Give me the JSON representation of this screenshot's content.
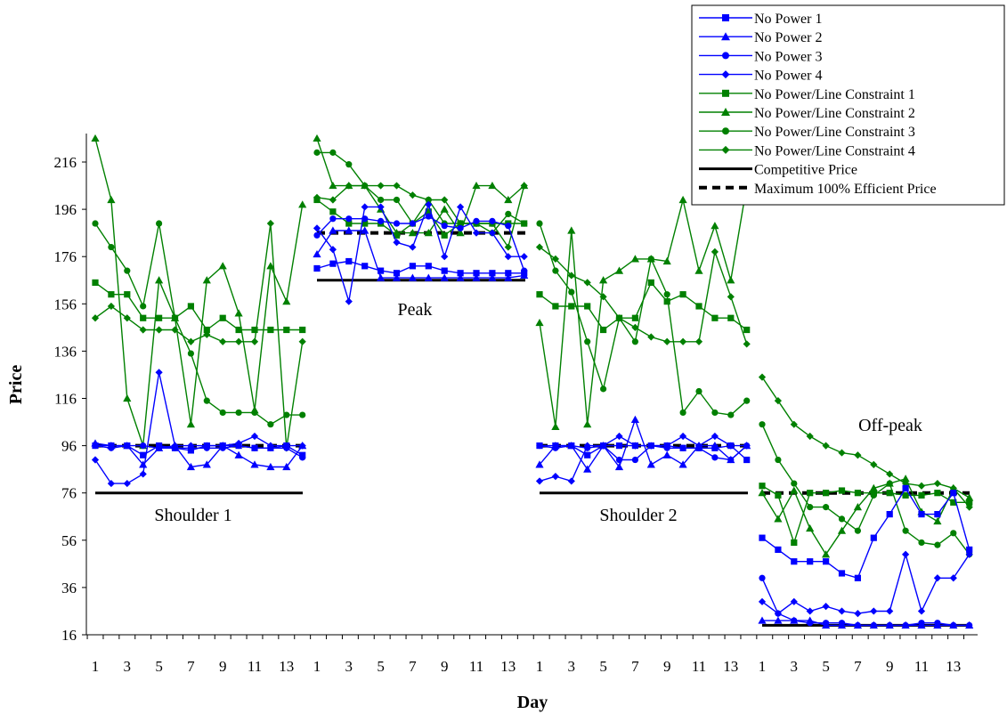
{
  "chart_data": {
    "type": "line",
    "xlabel": "Day",
    "ylabel": "Price",
    "ylim": [
      16,
      231
    ],
    "y_ticks": [
      16,
      36,
      56,
      76,
      96,
      116,
      136,
      156,
      176,
      196,
      216
    ],
    "x_tick_labels": [
      "1",
      "3",
      "5",
      "7",
      "9",
      "11",
      "13"
    ],
    "days": [
      1,
      2,
      3,
      4,
      5,
      6,
      7,
      8,
      9,
      10,
      11,
      12,
      13,
      14
    ],
    "grid": false,
    "legend_position": "top-right",
    "colors": {
      "no_power": "#0000ff",
      "no_power_line": "#008000",
      "reference": "#000000"
    },
    "legend": [
      {
        "label": "No Power 1",
        "marker": "square",
        "color": "#0000ff",
        "style": "solid"
      },
      {
        "label": "No Power 2",
        "marker": "triangle",
        "color": "#0000ff",
        "style": "solid"
      },
      {
        "label": "No Power 3",
        "marker": "circle",
        "color": "#0000ff",
        "style": "solid"
      },
      {
        "label": "No Power 4",
        "marker": "diamond",
        "color": "#0000ff",
        "style": "solid"
      },
      {
        "label": "No Power/Line Constraint 1",
        "marker": "square",
        "color": "#008000",
        "style": "solid"
      },
      {
        "label": "No Power/Line Constraint 2",
        "marker": "triangle",
        "color": "#008000",
        "style": "solid"
      },
      {
        "label": "No Power/Line Constraint 3",
        "marker": "circle",
        "color": "#008000",
        "style": "solid"
      },
      {
        "label": "No Power/Line Constraint 4",
        "marker": "diamond",
        "color": "#008000",
        "style": "solid"
      },
      {
        "label": "Competitive Price",
        "marker": "none",
        "color": "#000000",
        "style": "solid"
      },
      {
        "label": "Maximum 100% Efficient Price",
        "marker": "none",
        "color": "#000000",
        "style": "dashed"
      }
    ],
    "segments": [
      {
        "label": "Shoulder 1",
        "competitive_price": 76,
        "max_efficient_price": 96,
        "series": [
          {
            "name": "No Power 1",
            "values": [
              96,
              96,
              96,
              92,
              96,
              95,
              94,
              96,
              96,
              96,
              95,
              95,
              96,
              92
            ]
          },
          {
            "name": "No Power 2",
            "values": [
              97,
              96,
              96,
              88,
              95,
              96,
              87,
              88,
              96,
              92,
              88,
              87,
              87,
              96
            ]
          },
          {
            "name": "No Power 3",
            "values": [
              96,
              95,
              96,
              96,
              95,
              95,
              95,
              95,
              95,
              96,
              95,
              95,
              95,
              91
            ]
          },
          {
            "name": "No Power 4",
            "values": [
              90,
              80,
              80,
              84,
              127,
              96,
              96,
              96,
              96,
              97,
              100,
              96,
              96,
              96
            ]
          },
          {
            "name": "No Power/Line Constraint 1",
            "values": [
              165,
              160,
              160,
              150,
              150,
              150,
              155,
              145,
              150,
              145,
              145,
              145,
              145,
              145
            ]
          },
          {
            "name": "No Power/Line Constraint 2",
            "values": [
              226,
              200,
              116,
              96,
              166,
              150,
              105,
              166,
              172,
              152,
              111,
              172,
              157,
              198
            ]
          },
          {
            "name": "No Power/Line Constraint 3",
            "values": [
              190,
              180,
              170,
              155,
              190,
              150,
              135,
              115,
              110,
              110,
              110,
              105,
              109,
              109
            ]
          },
          {
            "name": "No Power/Line Constraint 4",
            "values": [
              150,
              155,
              150,
              145,
              145,
              145,
              140,
              143,
              140,
              140,
              140,
              190,
              95,
              140
            ]
          }
        ]
      },
      {
        "label": "Peak",
        "competitive_price": 166,
        "max_efficient_price": 186,
        "series": [
          {
            "name": "No Power 1",
            "values": [
              171,
              173,
              174,
              172,
              170,
              169,
              172,
              172,
              170,
              169,
              169,
              169,
              169,
              169
            ]
          },
          {
            "name": "No Power 2",
            "values": [
              177,
              187,
              187,
              187,
              167,
              167,
              167,
              167,
              167,
              167,
              167,
              167,
              167,
              168
            ]
          },
          {
            "name": "No Power 3",
            "values": [
              185,
              192,
              192,
              192,
              191,
              190,
              190,
              193,
              189,
              188,
              191,
              191,
              189,
              170
            ]
          },
          {
            "name": "No Power 4",
            "values": [
              188,
              179,
              157,
              197,
              197,
              182,
              180,
              198,
              176,
              197,
              186,
              186,
              176,
              176
            ]
          },
          {
            "name": "No Power/Line Constraint 1",
            "values": [
              200,
              195,
              190,
              190,
              190,
              185,
              190,
              195,
              185,
              190,
              190,
              190,
              190,
              190
            ]
          },
          {
            "name": "No Power/Line Constraint 2",
            "values": [
              226,
              206,
              206,
              206,
              196,
              186,
              186,
              186,
              196,
              186,
              206,
              206,
              200,
              206
            ]
          },
          {
            "name": "No Power/Line Constraint 3",
            "values": [
              220,
              220,
              215,
              206,
              200,
              200,
              190,
              200,
              190,
              190,
              190,
              186,
              194,
              190
            ]
          },
          {
            "name": "No Power/Line Constraint 4",
            "values": [
              201,
              200,
              206,
              206,
              206,
              206,
              202,
              200,
              200,
              190,
              190,
              190,
              180,
              206
            ]
          }
        ]
      },
      {
        "label": "Shoulder 2",
        "competitive_price": 76,
        "max_efficient_price": 96,
        "series": [
          {
            "name": "No Power 1",
            "values": [
              96,
              96,
              96,
              92,
              96,
              96,
              96,
              96,
              96,
              95,
              95,
              95,
              96,
              90
            ]
          },
          {
            "name": "No Power 2",
            "values": [
              88,
              96,
              96,
              86,
              96,
              87,
              107,
              88,
              92,
              88,
              96,
              96,
              90,
              96
            ]
          },
          {
            "name": "No Power 3",
            "values": [
              96,
              95,
              96,
              95,
              96,
              90,
              90,
              96,
              95,
              95,
              95,
              91,
              90,
              96
            ]
          },
          {
            "name": "No Power 4",
            "values": [
              81,
              83,
              81,
              96,
              96,
              100,
              96,
              96,
              96,
              100,
              96,
              100,
              96,
              96
            ]
          },
          {
            "name": "No Power/Line Constraint 1",
            "values": [
              160,
              155,
              155,
              155,
              145,
              150,
              150,
              165,
              157,
              160,
              155,
              150,
              150,
              145
            ]
          },
          {
            "name": "No Power/Line Constraint 2",
            "values": [
              148,
              104,
              187,
              105,
              166,
              170,
              175,
              175,
              174,
              200,
              170,
              189,
              166,
              206
            ]
          },
          {
            "name": "No Power/Line Constraint 3",
            "values": [
              190,
              170,
              161,
              140,
              120,
              150,
              140,
              175,
              160,
              110,
              119,
              110,
              109,
              115
            ]
          },
          {
            "name": "No Power/Line Constraint 4",
            "values": [
              180,
              175,
              168,
              165,
              159,
              150,
              146,
              142,
              140,
              140,
              140,
              178,
              159,
              139
            ]
          }
        ]
      },
      {
        "label": "Off-peak",
        "competitive_price": 20,
        "max_efficient_price": 76,
        "series": [
          {
            "name": "No Power 1",
            "values": [
              57,
              52,
              47,
              47,
              47,
              42,
              40,
              57,
              67,
              78,
              67,
              67,
              76,
              52
            ]
          },
          {
            "name": "No Power 2",
            "values": [
              22,
              22,
              22,
              22,
              20,
              20,
              20,
              20,
              20,
              20,
              20,
              20,
              20,
              20
            ]
          },
          {
            "name": "No Power 3",
            "values": [
              40,
              25,
              22,
              21,
              21,
              21,
              20,
              20,
              20,
              20,
              21,
              21,
              20,
              20
            ]
          },
          {
            "name": "No Power 4",
            "values": [
              30,
              25,
              30,
              26,
              28,
              26,
              25,
              26,
              26,
              50,
              26,
              40,
              40,
              50
            ]
          },
          {
            "name": "No Power/Line Constraint 1",
            "values": [
              79,
              75,
              55,
              76,
              76,
              77,
              76,
              76,
              76,
              75,
              75,
              76,
              72,
              72
            ]
          },
          {
            "name": "No Power/Line Constraint 2",
            "values": [
              76,
              65,
              77,
              61,
              50,
              60,
              70,
              78,
              80,
              82,
              68,
              64,
              78,
              74
            ]
          },
          {
            "name": "No Power/Line Constraint 3",
            "values": [
              105,
              90,
              80,
              70,
              70,
              65,
              60,
              75,
              80,
              60,
              55,
              54,
              59,
              50
            ]
          },
          {
            "name": "No Power/Line Constraint 4",
            "values": [
              125,
              115,
              105,
              100,
              96,
              93,
              92,
              88,
              84,
              80,
              79,
              80,
              78,
              70
            ]
          }
        ]
      }
    ]
  }
}
